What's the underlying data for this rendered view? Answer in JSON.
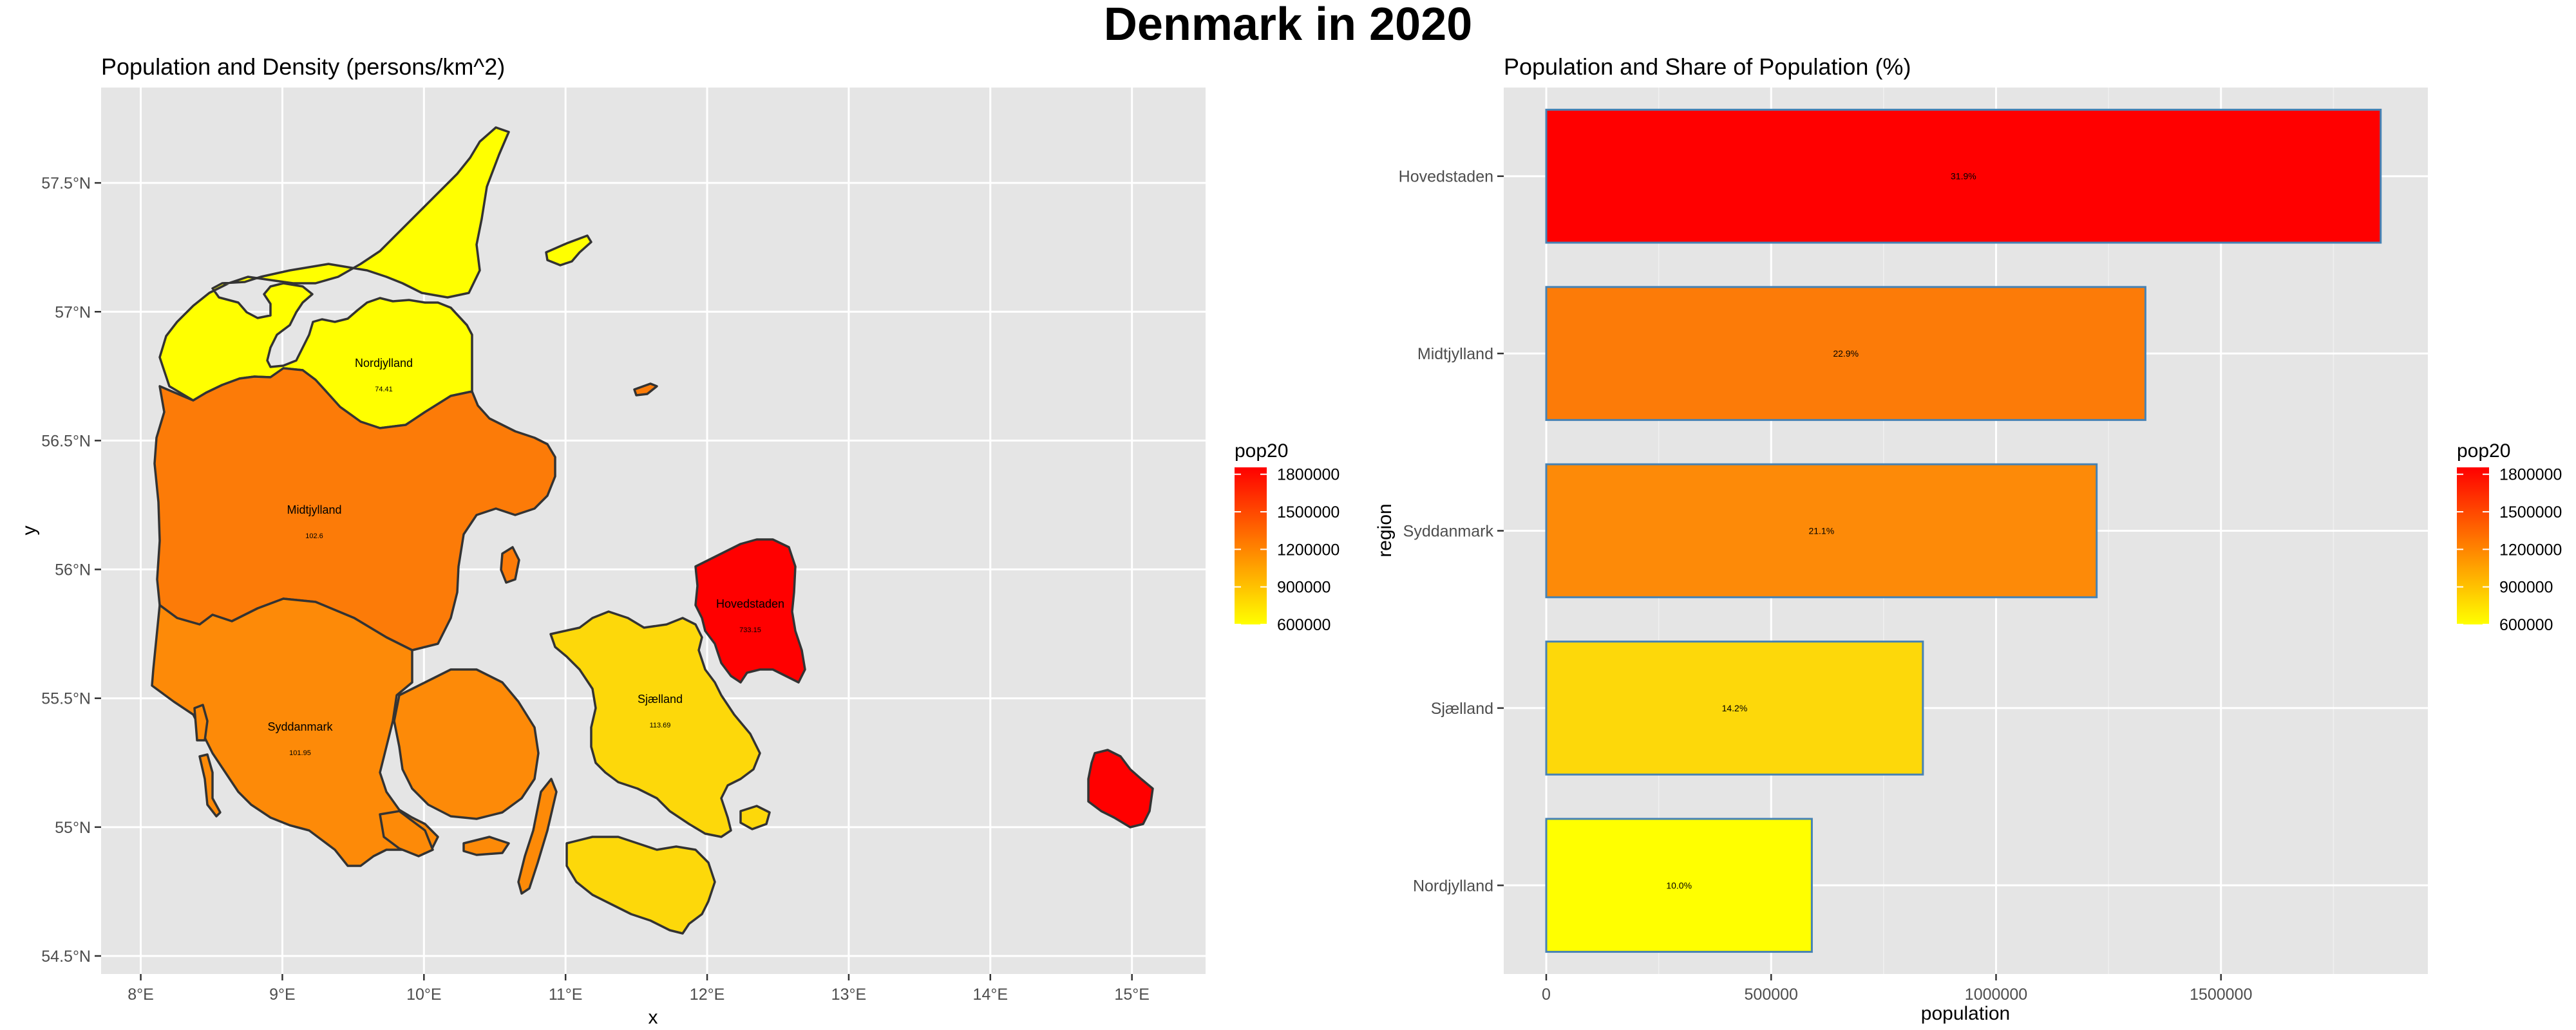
{
  "title": "Denmark in 2020",
  "chart_data": [
    {
      "type": "map",
      "title": "Population and Density (persons/km^2)",
      "xlabel": "x",
      "ylabel": "y",
      "xlim": [
        7.72,
        15.52
      ],
      "ylim": [
        54.43,
        57.87
      ],
      "x_ticks": [
        "8°E",
        "9°E",
        "10°E",
        "11°E",
        "12°E",
        "13°E",
        "14°E",
        "15°E"
      ],
      "y_ticks": [
        "54.5°N",
        "55°N",
        "55.5°N",
        "56°N",
        "56.5°N",
        "57°N",
        "57.5°N"
      ],
      "fill_variable": "pop20",
      "legend": {
        "title": "pop20",
        "labels": [
          "1800000",
          "1500000",
          "1200000",
          "900000",
          "600000"
        ],
        "low_color": "#ffff00",
        "high_color": "#ff0000"
      },
      "regions": [
        {
          "name": "Hovedstaden",
          "density": "733.15",
          "population": 1855084,
          "color": "#ff0000"
        },
        {
          "name": "Midtjylland",
          "density": "102.6",
          "population": 1332048,
          "color": "#fc7b08"
        },
        {
          "name": "Syddanmark",
          "density": "101.95",
          "population": 1223634,
          "color": "#fd8a08"
        },
        {
          "name": "Sjælland",
          "density": "113.69",
          "population": 837359,
          "color": "#fdd80a"
        },
        {
          "name": "Nordjylland",
          "density": "74.41",
          "population": 590439,
          "color": "#ffff00"
        }
      ]
    },
    {
      "type": "bar",
      "orientation": "horizontal",
      "title": "Population and Share of Population (%)",
      "xlabel": "population",
      "ylabel": "region",
      "xlim": [
        0,
        1960000
      ],
      "x_ticks": [
        "0",
        "500000",
        "1000000",
        "1500000"
      ],
      "categories": [
        "Hovedstaden",
        "Midtjylland",
        "Syddanmark",
        "Sjælland",
        "Nordjylland"
      ],
      "values": [
        1855084,
        1332048,
        1223634,
        837359,
        590439
      ],
      "shares": [
        "31.9%",
        "22.9%",
        "21.1%",
        "14.2%",
        "10.0%"
      ],
      "colors": [
        "#ff0000",
        "#fc7b08",
        "#fd8a08",
        "#fdd80a",
        "#ffff00"
      ],
      "legend": {
        "title": "pop20",
        "labels": [
          "1800000",
          "1500000",
          "1200000",
          "900000",
          "600000"
        ]
      }
    }
  ]
}
